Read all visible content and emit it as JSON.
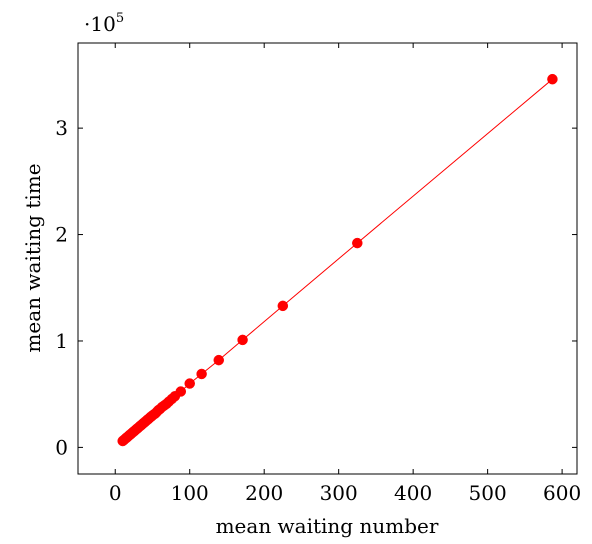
{
  "chart_data": {
    "type": "line",
    "xlabel": "mean waiting number",
    "ylabel": "mean waiting time",
    "x_ticks": [
      "0",
      "100",
      "200",
      "300",
      "400",
      "500",
      "600"
    ],
    "y_ticks": [
      "0",
      "1",
      "2",
      "3"
    ],
    "y_multiplier_base": "·10",
    "y_multiplier_exp": "5",
    "xlim": [
      -50,
      620
    ],
    "ylim": [
      -25000,
      380000
    ],
    "grid": false,
    "marker": "circle",
    "series": [
      {
        "color": "#ff0000",
        "x": [
          10,
          11,
          12,
          13,
          14,
          15,
          16,
          17,
          18,
          19,
          20,
          21,
          22,
          23,
          24,
          25,
          26,
          27,
          28,
          29,
          30,
          31,
          32,
          33,
          34,
          35,
          36,
          37,
          38,
          39,
          40,
          41,
          42,
          43,
          44,
          45,
          46,
          47,
          48,
          49,
          50,
          52,
          54,
          56,
          58,
          60,
          63,
          66,
          69,
          72,
          76,
          80,
          88,
          100,
          116,
          139,
          171,
          225,
          325,
          587
        ],
        "y": [
          6000,
          6600,
          7200,
          7800,
          8400,
          9000,
          9600,
          10200,
          10800,
          11400,
          12000,
          12600,
          13200,
          13800,
          14400,
          15000,
          15600,
          16200,
          16800,
          17400,
          18000,
          18600,
          19200,
          19800,
          20400,
          21000,
          21600,
          22200,
          22800,
          23400,
          24000,
          24600,
          25200,
          25800,
          26400,
          27000,
          27600,
          28200,
          28800,
          29400,
          30000,
          31000,
          32000,
          33500,
          35000,
          36000,
          38000,
          39500,
          41000,
          43000,
          45500,
          48000,
          52500,
          60000,
          69000,
          82000,
          101000,
          133000,
          192000,
          346000
        ]
      }
    ]
  }
}
